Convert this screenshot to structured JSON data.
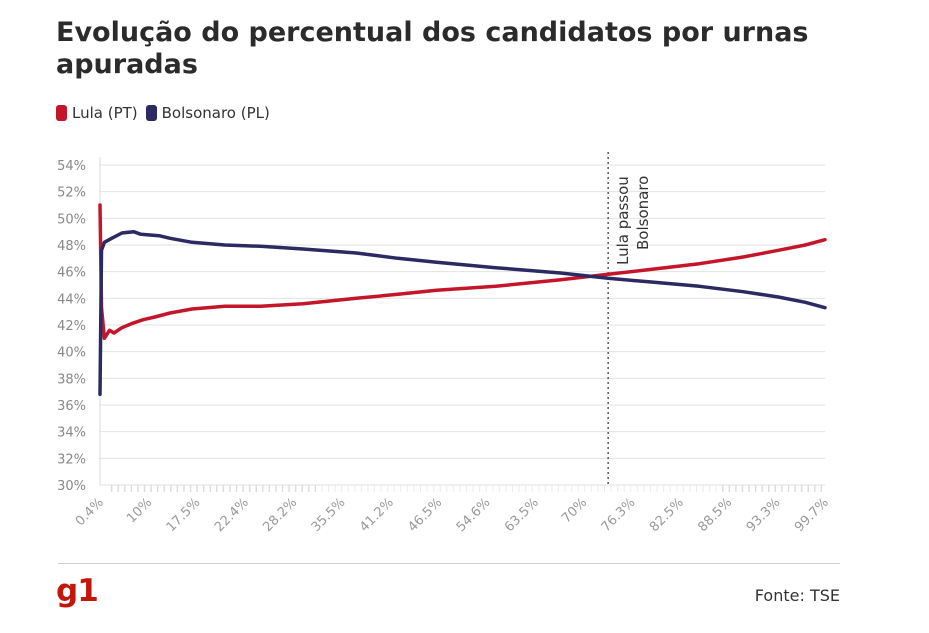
{
  "chart_data": {
    "type": "line",
    "title": "Evolução do percentual dos candidatos por urnas apuradas",
    "xlabel": "",
    "ylabel": "",
    "xlim": [
      0.4,
      99.7
    ],
    "ylim": [
      30,
      54
    ],
    "y_ticks": [
      "30%",
      "32%",
      "34%",
      "36%",
      "38%",
      "40%",
      "42%",
      "44%",
      "46%",
      "48%",
      "50%",
      "52%",
      "54%"
    ],
    "x_tick_labels": [
      "0.4%",
      "10%",
      "17.5%",
      "22.4%",
      "28.2%",
      "35.5%",
      "41.2%",
      "46.5%",
      "54.6%",
      "63.5%",
      "70%",
      "76.3%",
      "82.5%",
      "88.5%",
      "93.3%",
      "99.7%"
    ],
    "grid": true,
    "legend_position": "top-left",
    "series": [
      {
        "name": "Lula (PT)",
        "color": "#c4162a",
        "points": [
          [
            0.4,
            51.0
          ],
          [
            0.6,
            43.3
          ],
          [
            1.0,
            41.0
          ],
          [
            1.7,
            41.6
          ],
          [
            2.3,
            41.4
          ],
          [
            3.4,
            41.8
          ],
          [
            4.7,
            42.1
          ],
          [
            6.3,
            42.4
          ],
          [
            7.9,
            42.6
          ],
          [
            10.0,
            42.9
          ],
          [
            13.0,
            43.2
          ],
          [
            17.5,
            43.4
          ],
          [
            22.4,
            43.4
          ],
          [
            28.2,
            43.6
          ],
          [
            35.5,
            44.0
          ],
          [
            41.2,
            44.3
          ],
          [
            46.5,
            44.6
          ],
          [
            54.6,
            44.9
          ],
          [
            63.5,
            45.4
          ],
          [
            70.0,
            45.8
          ],
          [
            76.3,
            46.2
          ],
          [
            82.5,
            46.6
          ],
          [
            88.5,
            47.1
          ],
          [
            93.3,
            47.6
          ],
          [
            97.0,
            48.0
          ],
          [
            99.7,
            48.4
          ]
        ]
      },
      {
        "name": "Bolsonaro (PL)",
        "color": "#2b2a63",
        "points": [
          [
            0.4,
            36.8
          ],
          [
            0.6,
            47.6
          ],
          [
            1.0,
            48.2
          ],
          [
            2.0,
            48.5
          ],
          [
            3.4,
            48.9
          ],
          [
            5.0,
            49.0
          ],
          [
            6.0,
            48.8
          ],
          [
            8.5,
            48.7
          ],
          [
            10.0,
            48.5
          ],
          [
            13.0,
            48.2
          ],
          [
            17.5,
            48.0
          ],
          [
            22.4,
            47.9
          ],
          [
            28.2,
            47.7
          ],
          [
            35.5,
            47.4
          ],
          [
            41.2,
            47.0
          ],
          [
            46.5,
            46.7
          ],
          [
            54.6,
            46.3
          ],
          [
            63.5,
            45.9
          ],
          [
            70.0,
            45.5
          ],
          [
            76.3,
            45.2
          ],
          [
            82.5,
            44.9
          ],
          [
            88.5,
            44.5
          ],
          [
            93.3,
            44.1
          ],
          [
            97.0,
            43.7
          ],
          [
            99.7,
            43.3
          ]
        ]
      }
    ],
    "annotation": {
      "x": 70.0,
      "text_line1": "Lula passou",
      "text_line2": "Bolsonaro"
    }
  },
  "footer": {
    "logo": "g1",
    "source": "Fonte: TSE"
  }
}
